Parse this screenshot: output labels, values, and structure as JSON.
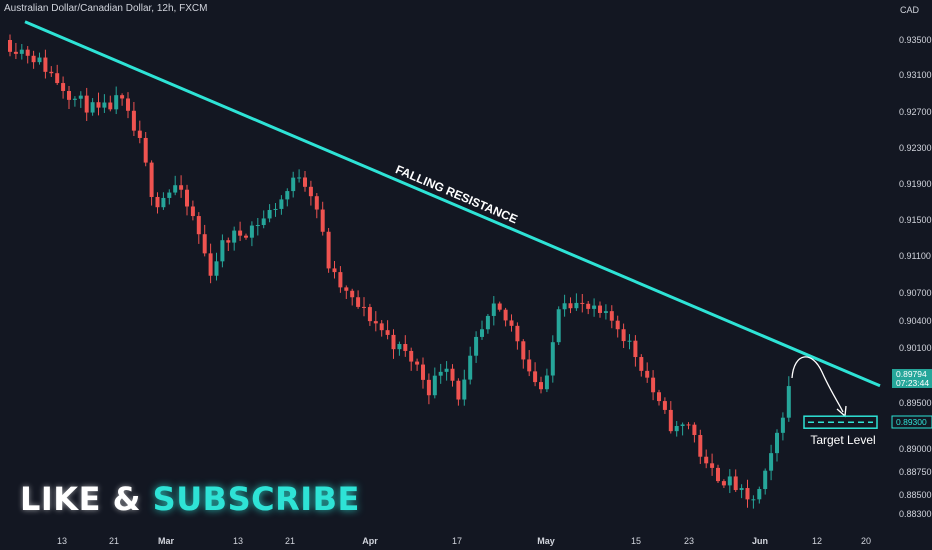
{
  "header": {
    "title": "Australian Dollar/Canadian Dollar, 12h, FXCM",
    "currency": "CAD"
  },
  "price_axis": {
    "labels": [
      "0.93500",
      "0.93100",
      "0.92700",
      "0.92300",
      "0.91900",
      "0.91500",
      "0.91100",
      "0.90700",
      "0.90400",
      "0.90100",
      "0.89500",
      "0.89000",
      "0.88750",
      "0.88500",
      "0.88300"
    ],
    "last_price": "0.89794",
    "countdown": "07:23:44",
    "target_price": "0.89300"
  },
  "time_axis": {
    "labels": [
      "13",
      "21",
      "Mar",
      "13",
      "21",
      "Apr",
      "17",
      "May",
      "15",
      "23",
      "Jun",
      "12",
      "20"
    ]
  },
  "annotations": {
    "trendline_label": "FALLING RESISTANCE",
    "target_label": "Target Level"
  },
  "promo": {
    "like": "LIKE &",
    "subscribe": "SUBSCRIBE"
  },
  "colors": {
    "background": "#131722",
    "up_candle": "#26a69a",
    "down_candle": "#ef5350",
    "trendline": "#2ee3d6",
    "text": "#d1d4dc"
  },
  "chart_data": {
    "type": "candlestick",
    "title": "Australian Dollar/Canadian Dollar, 12h, FXCM",
    "y_axis_unit": "CAD",
    "close_path_approx": [
      {
        "x": "13",
        "y": 0.935
      },
      {
        "x": "21",
        "y": 0.928
      },
      {
        "x": "Mar",
        "y": 0.919
      },
      {
        "x": "13",
        "y": 0.912
      },
      {
        "x": "21",
        "y": 0.916
      },
      {
        "x": "Apr",
        "y": 0.911
      },
      {
        "x": "17",
        "y": 0.898
      },
      {
        "x": "May",
        "y": 0.907
      },
      {
        "x": "15",
        "y": 0.901
      },
      {
        "x": "23",
        "y": 0.892
      },
      {
        "x": "Jun",
        "y": 0.884
      },
      {
        "x": "Jun",
        "y": 0.898
      }
    ],
    "trendline": {
      "label": "FALLING RESISTANCE",
      "from": 0.937,
      "to": 0.897
    },
    "last_price": 0.89794,
    "target_level": 0.893
  }
}
